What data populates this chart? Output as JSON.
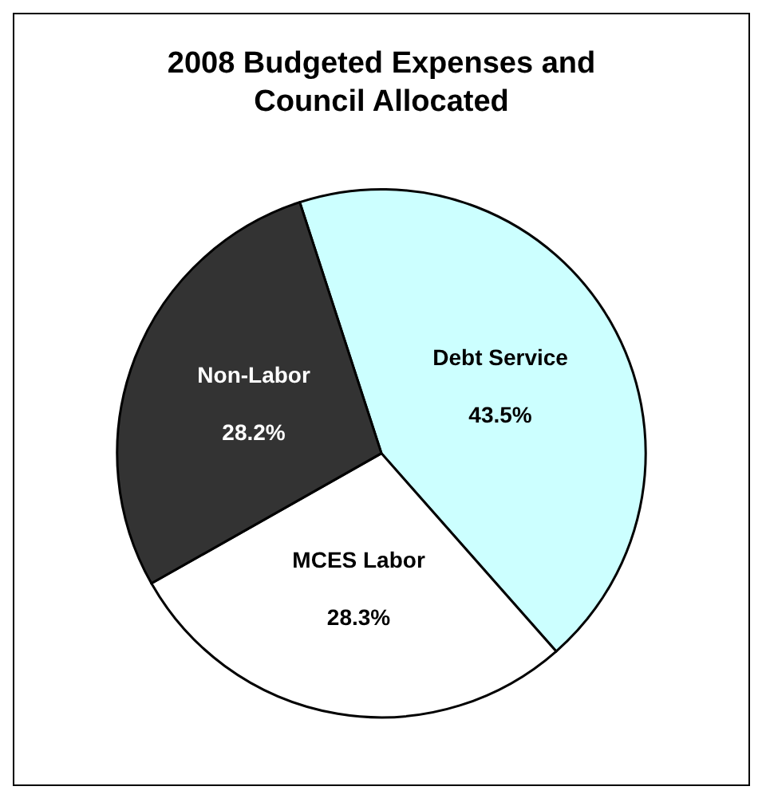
{
  "chart_data": {
    "type": "pie",
    "title": "2008 Budgeted Expenses and\nCouncil Allocated",
    "categories": [
      "Debt Service",
      "MCES Labor",
      "Non-Labor"
    ],
    "values": [
      43.5,
      28.3,
      28.2
    ],
    "colors": [
      "#ccffff",
      "#ffffff",
      "#333333"
    ],
    "value_labels": [
      "43.5%",
      "28.3%",
      "28.2%"
    ],
    "legend": false
  }
}
